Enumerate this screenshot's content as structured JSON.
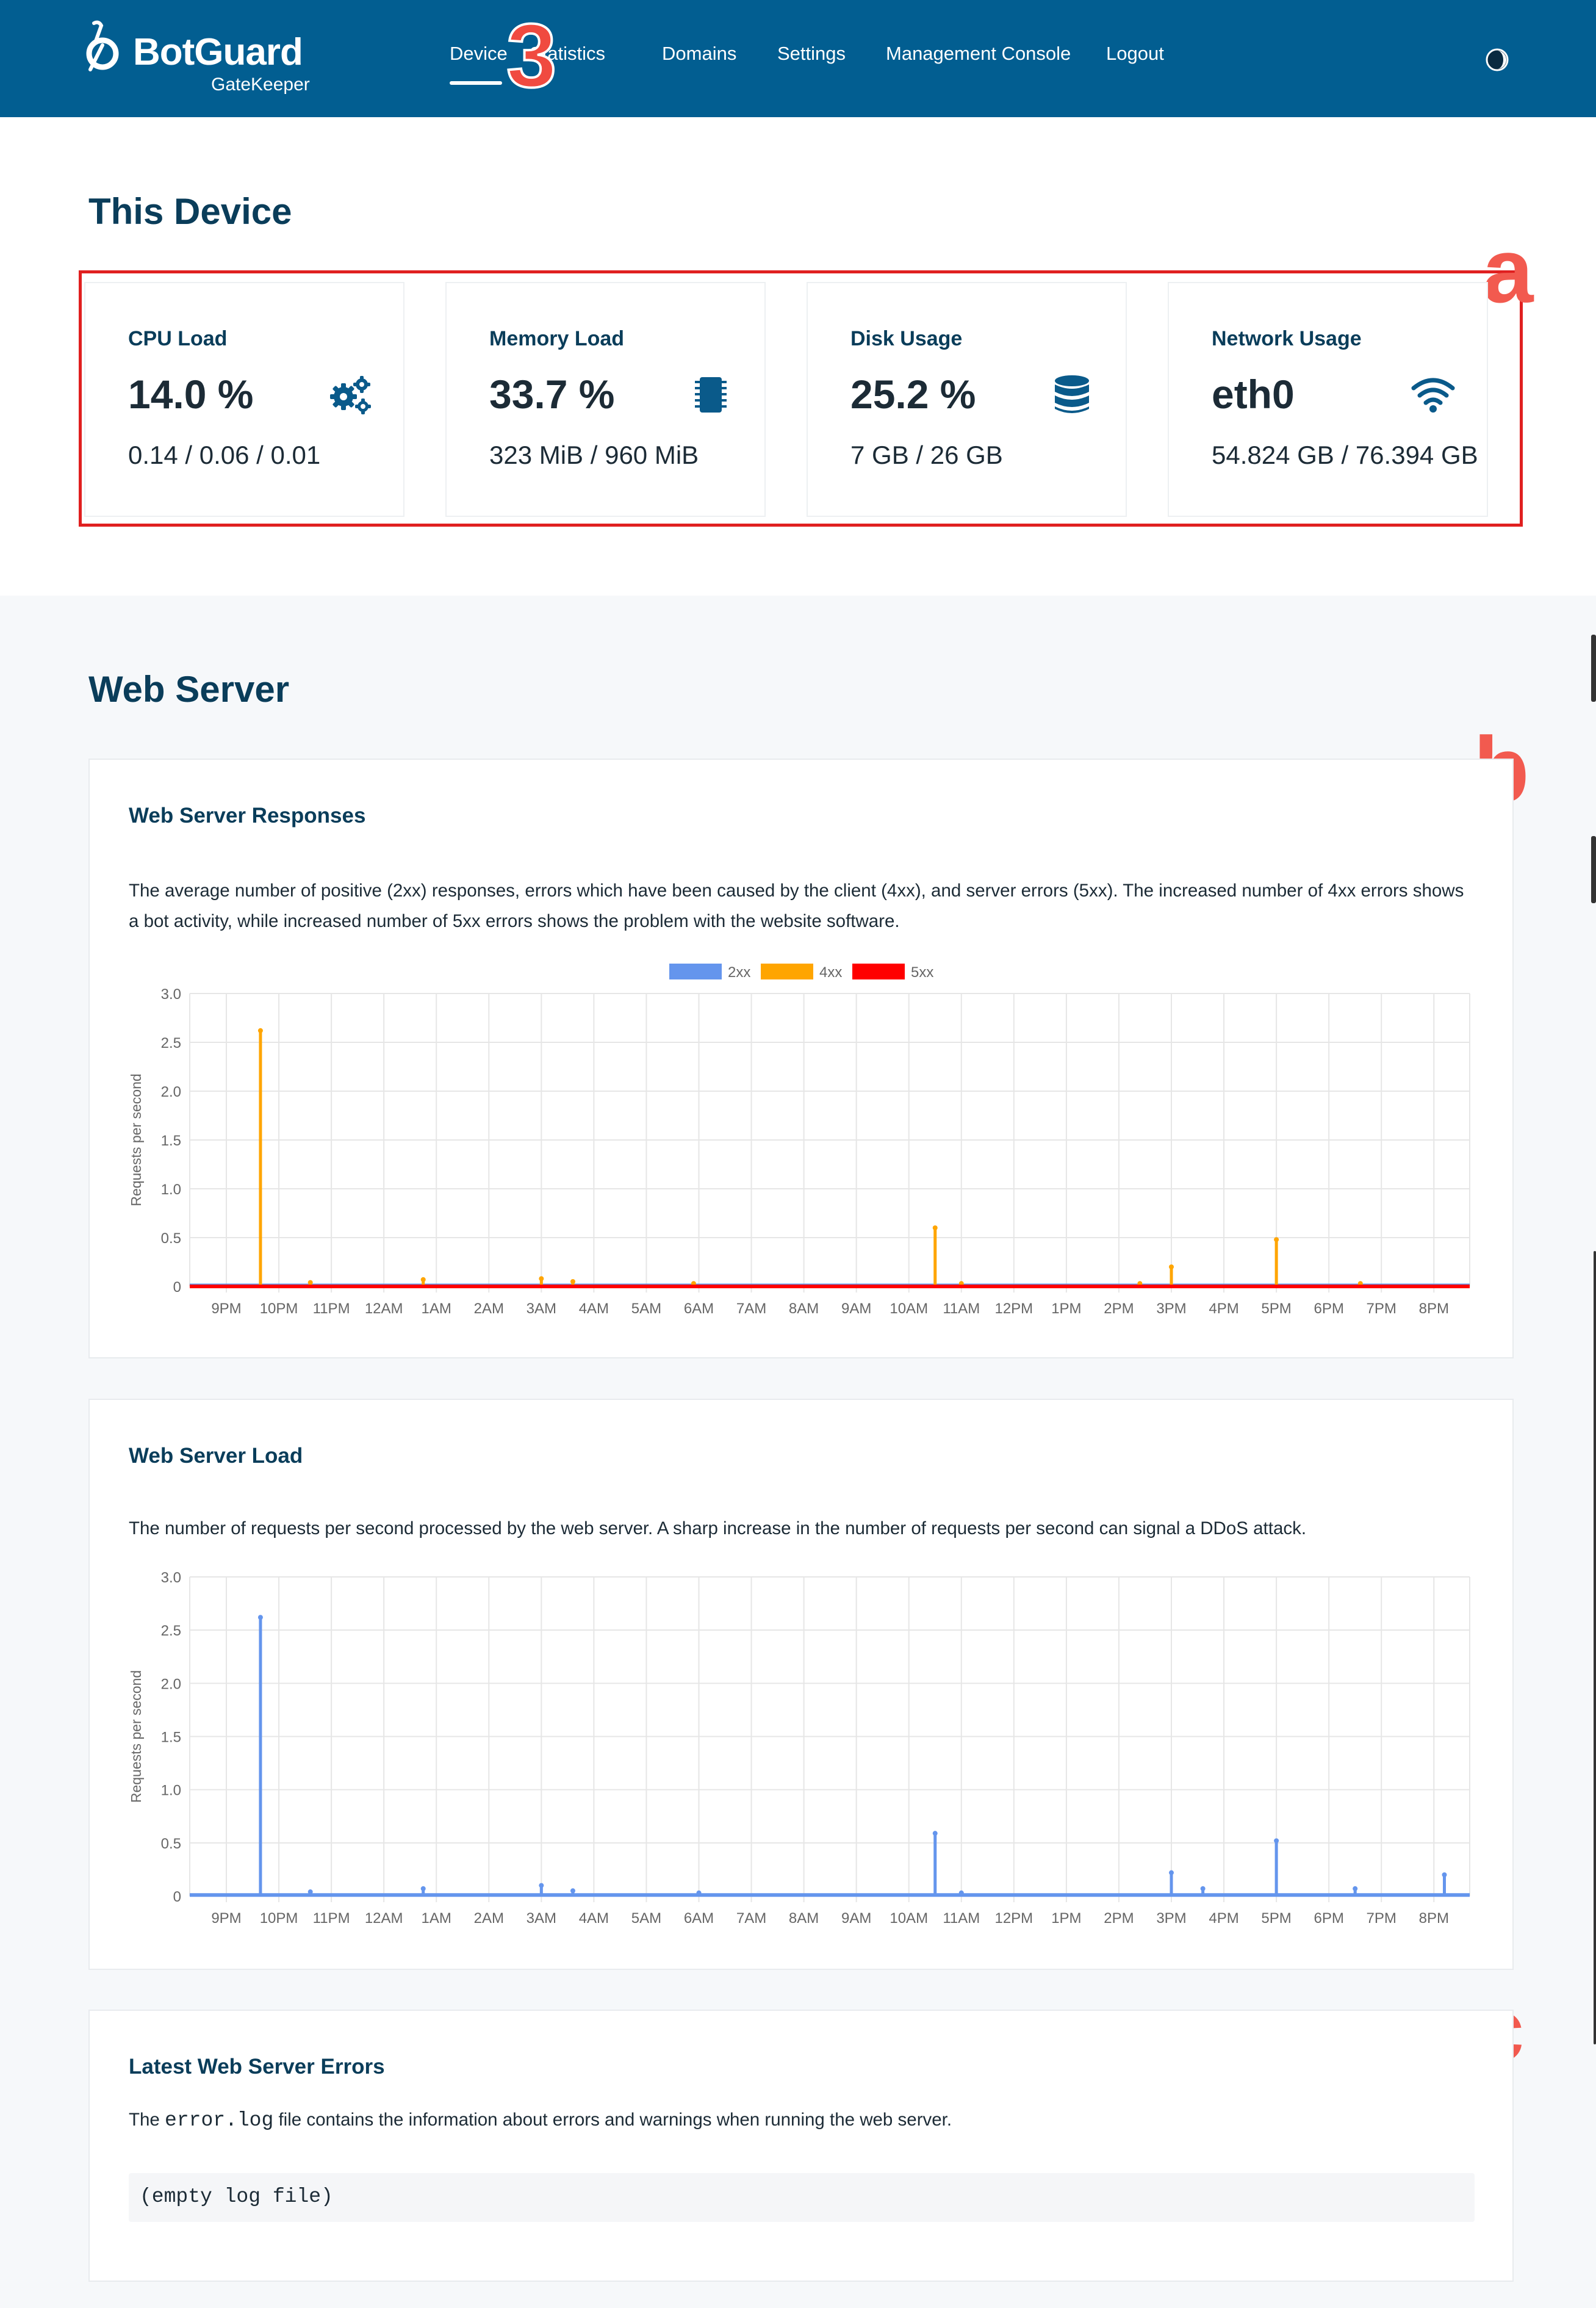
{
  "navbar": {
    "brand": "BotGuard",
    "product": "GateKeeper",
    "items": [
      "Device",
      "Statistics",
      "Domains",
      "Settings",
      "Management Console",
      "Logout"
    ],
    "active": "Device",
    "background": "#025e91"
  },
  "annotations": {
    "step": "3",
    "a": "a",
    "b": "b",
    "c": "c"
  },
  "device": {
    "title": "This Device",
    "cards": [
      {
        "label": "CPU Load",
        "value": "14.0 %",
        "detail": "0.14 / 0.06 / 0.01",
        "icon": "gears-icon"
      },
      {
        "label": "Memory Load",
        "value": "33.7 %",
        "detail": "323 MiB / 960 MiB",
        "icon": "memory-chip-icon"
      },
      {
        "label": "Disk Usage",
        "value": "25.2 %",
        "detail": "7 GB / 26 GB",
        "icon": "database-icon"
      },
      {
        "label": "Network Usage",
        "value": "eth0",
        "detail": "54.824 GB / 76.394 GB",
        "icon": "wifi-icon"
      }
    ]
  },
  "webserver": {
    "title": "Web Server",
    "responses": {
      "title": "Web Server Responses",
      "description": "The average number of positive (2xx) responses, errors which have been caused by the client (4xx), and server errors (5xx). The increased number of 4xx errors shows a bot activity, while increased number of 5xx errors shows the problem with the website software."
    },
    "load": {
      "title": "Web Server Load",
      "description": "The number of requests per second processed by the web server. A sharp increase in the number of requests per second can signal a DDoS attack."
    },
    "errors": {
      "title": "Latest Web Server Errors",
      "description_prefix": "The ",
      "description_code": "error.log",
      "description_suffix": " file contains the information about errors and warnings when running the web server.",
      "log_content": "(empty log file)"
    }
  },
  "chart_data": [
    {
      "type": "line",
      "ylabel": "Requests per second",
      "ylim": [
        0,
        3
      ],
      "yticks": [
        "0",
        "0.5",
        "1.0",
        "1.5",
        "2.0",
        "2.5",
        "3.0"
      ],
      "x": [
        "9PM",
        "10PM",
        "11PM",
        "12AM",
        "1AM",
        "2AM",
        "3AM",
        "4AM",
        "5AM",
        "6AM",
        "7AM",
        "8AM",
        "9AM",
        "10AM",
        "11AM",
        "12PM",
        "1PM",
        "2PM",
        "3PM",
        "4PM",
        "5PM",
        "6PM",
        "7PM",
        "8PM"
      ],
      "legend": [
        "2xx",
        "4xx",
        "5xx"
      ],
      "legend_position": "top",
      "grid": true,
      "series": [
        {
          "name": "2xx",
          "color": "#6495ed",
          "baseline": 0.01,
          "spikes": []
        },
        {
          "name": "4xx",
          "color": "#ffa500",
          "baseline": 0.0,
          "spikes": [
            [
              0.65,
              2.62
            ],
            [
              1.6,
              0.04
            ],
            [
              3.75,
              0.07
            ],
            [
              6.0,
              0.08
            ],
            [
              6.6,
              0.05
            ],
            [
              8.9,
              0.03
            ],
            [
              13.5,
              0.6
            ],
            [
              14.0,
              0.03
            ],
            [
              17.4,
              0.03
            ],
            [
              18.0,
              0.2
            ],
            [
              20.0,
              0.48
            ],
            [
              21.6,
              0.03
            ]
          ]
        },
        {
          "name": "5xx",
          "color": "#ff0000",
          "baseline": 0.0,
          "spikes": []
        }
      ]
    },
    {
      "type": "line",
      "ylabel": "Requests per second",
      "ylim": [
        0,
        3
      ],
      "yticks": [
        "0",
        "0.5",
        "1.0",
        "1.5",
        "2.0",
        "2.5",
        "3.0"
      ],
      "x": [
        "9PM",
        "10PM",
        "11PM",
        "12AM",
        "1AM",
        "2AM",
        "3AM",
        "4AM",
        "5AM",
        "6AM",
        "7AM",
        "8AM",
        "9AM",
        "10AM",
        "11AM",
        "12PM",
        "1PM",
        "2PM",
        "3PM",
        "4PM",
        "5PM",
        "6PM",
        "7PM",
        "8PM"
      ],
      "grid": true,
      "series": [
        {
          "name": "",
          "color": "#6495ed",
          "baseline": 0.01,
          "spikes": [
            [
              0.65,
              2.62
            ],
            [
              1.6,
              0.04
            ],
            [
              3.75,
              0.07
            ],
            [
              6.0,
              0.1
            ],
            [
              6.6,
              0.05
            ],
            [
              9.0,
              0.03
            ],
            [
              13.5,
              0.59
            ],
            [
              14.0,
              0.03
            ],
            [
              18.0,
              0.22
            ],
            [
              18.6,
              0.07
            ],
            [
              20.0,
              0.52
            ],
            [
              21.5,
              0.07
            ],
            [
              23.2,
              0.2
            ]
          ]
        }
      ]
    }
  ]
}
